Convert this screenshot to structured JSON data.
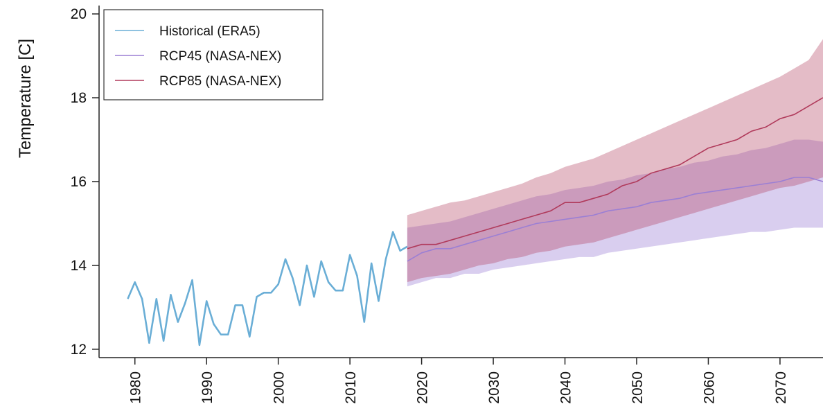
{
  "chart_data": {
    "type": "line",
    "title": "",
    "xlabel": "",
    "ylabel": "Temperature [C]",
    "xlim": [
      1975,
      2076
    ],
    "ylim": [
      11.8,
      20.2
    ],
    "x_ticks": [
      1980,
      1990,
      2000,
      2010,
      2020,
      2030,
      2040,
      2050,
      2060,
      2070
    ],
    "y_ticks": [
      12,
      14,
      16,
      18,
      20
    ],
    "grid": false,
    "legend": {
      "position": "top-left",
      "entries": [
        "Historical (ERA5)",
        "RCP45 (NASA-NEX)",
        "RCP85 (NASA-NEX)"
      ]
    },
    "series": [
      {
        "name": "Historical (ERA5)",
        "color": "#6aaed6",
        "x": [
          1979,
          1980,
          1981,
          1982,
          1983,
          1984,
          1985,
          1986,
          1987,
          1988,
          1989,
          1990,
          1991,
          1992,
          1993,
          1994,
          1995,
          1996,
          1997,
          1998,
          1999,
          2000,
          2001,
          2002,
          2003,
          2004,
          2005,
          2006,
          2007,
          2008,
          2009,
          2010,
          2011,
          2012,
          2013,
          2014,
          2015,
          2016,
          2017,
          2018
        ],
        "values": [
          13.2,
          13.6,
          13.2,
          12.15,
          13.2,
          12.2,
          13.3,
          12.65,
          13.1,
          13.65,
          12.1,
          13.15,
          12.6,
          12.35,
          12.35,
          13.05,
          13.05,
          12.3,
          13.25,
          13.35,
          13.35,
          13.55,
          14.15,
          13.7,
          13.05,
          14.0,
          13.25,
          14.1,
          13.6,
          13.4,
          13.4,
          14.25,
          13.75,
          12.65,
          14.05,
          13.15,
          14.15,
          14.8,
          14.35,
          14.45
        ]
      },
      {
        "name": "RCP45 (NASA-NEX)",
        "color": "#9b7fd4",
        "x": [
          2018,
          2020,
          2022,
          2024,
          2026,
          2028,
          2030,
          2032,
          2034,
          2036,
          2038,
          2040,
          2042,
          2044,
          2046,
          2048,
          2050,
          2052,
          2054,
          2056,
          2058,
          2060,
          2062,
          2064,
          2066,
          2068,
          2070,
          2072,
          2074,
          2076
        ],
        "values": [
          14.1,
          14.3,
          14.4,
          14.4,
          14.5,
          14.6,
          14.7,
          14.8,
          14.9,
          15.0,
          15.05,
          15.1,
          15.15,
          15.2,
          15.3,
          15.35,
          15.4,
          15.5,
          15.55,
          15.6,
          15.7,
          15.75,
          15.8,
          15.85,
          15.9,
          15.95,
          16.0,
          16.1,
          16.1,
          16.0
        ],
        "band_lower": [
          13.5,
          13.6,
          13.7,
          13.7,
          13.8,
          13.8,
          13.9,
          13.95,
          14.0,
          14.05,
          14.1,
          14.15,
          14.2,
          14.2,
          14.3,
          14.35,
          14.4,
          14.45,
          14.5,
          14.55,
          14.6,
          14.65,
          14.7,
          14.75,
          14.8,
          14.8,
          14.85,
          14.9,
          14.9,
          14.9
        ],
        "band_upper": [
          14.9,
          14.95,
          15.0,
          15.05,
          15.15,
          15.25,
          15.35,
          15.45,
          15.55,
          15.65,
          15.7,
          15.8,
          15.85,
          15.9,
          16.0,
          16.05,
          16.15,
          16.2,
          16.3,
          16.35,
          16.45,
          16.5,
          16.6,
          16.65,
          16.75,
          16.8,
          16.9,
          17.0,
          17.0,
          16.95
        ]
      },
      {
        "name": "RCP85 (NASA-NEX)",
        "color": "#b03a5b",
        "x": [
          2018,
          2020,
          2022,
          2024,
          2026,
          2028,
          2030,
          2032,
          2034,
          2036,
          2038,
          2040,
          2042,
          2044,
          2046,
          2048,
          2050,
          2052,
          2054,
          2056,
          2058,
          2060,
          2062,
          2064,
          2066,
          2068,
          2070,
          2072,
          2074,
          2076
        ],
        "values": [
          14.4,
          14.5,
          14.5,
          14.6,
          14.7,
          14.8,
          14.9,
          15.0,
          15.1,
          15.2,
          15.3,
          15.5,
          15.5,
          15.6,
          15.7,
          15.9,
          16.0,
          16.2,
          16.3,
          16.4,
          16.6,
          16.8,
          16.9,
          17.0,
          17.2,
          17.3,
          17.5,
          17.6,
          17.8,
          18.0
        ],
        "band_lower": [
          13.6,
          13.7,
          13.75,
          13.8,
          13.9,
          14.0,
          14.05,
          14.15,
          14.2,
          14.3,
          14.35,
          14.45,
          14.5,
          14.55,
          14.65,
          14.75,
          14.85,
          14.95,
          15.05,
          15.15,
          15.25,
          15.35,
          15.45,
          15.55,
          15.65,
          15.75,
          15.85,
          15.9,
          16.0,
          16.1
        ],
        "band_upper": [
          15.2,
          15.3,
          15.4,
          15.5,
          15.55,
          15.65,
          15.75,
          15.85,
          15.95,
          16.1,
          16.2,
          16.35,
          16.45,
          16.55,
          16.7,
          16.85,
          17.0,
          17.15,
          17.3,
          17.45,
          17.6,
          17.75,
          17.9,
          18.05,
          18.2,
          18.35,
          18.5,
          18.7,
          18.9,
          19.4
        ]
      }
    ]
  }
}
